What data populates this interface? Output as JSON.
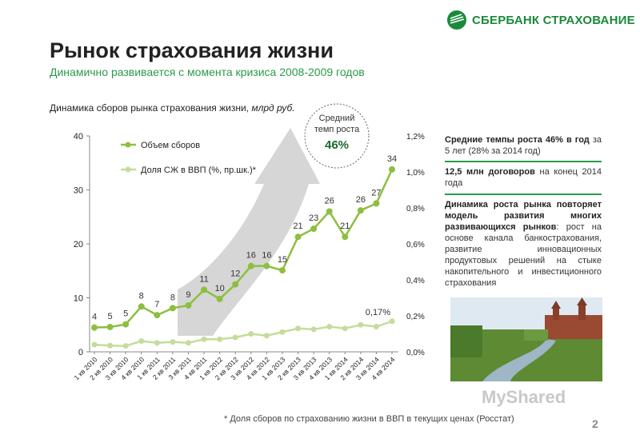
{
  "header": {
    "logo_text": "СБЕРБАНК СТРАХОВАНИЕ",
    "title": "Рынок страхования жизни",
    "subtitle": "Динамично развивается с момента кризиса 2008-2009 годов",
    "chart_caption": "Динамика сборов рынка страхования жизни,",
    "chart_caption_unit": "млрд руб."
  },
  "callout": {
    "line1": "Средний",
    "line2": "темп роста",
    "value": "46%"
  },
  "side": {
    "block1_bold": "Средние темпы роста 46% в год",
    "block1_rest": "за 5 лет (28% за 2014 год)",
    "block2_bold": "12,5 млн договоров",
    "block2_rest": "на конец 2014 года",
    "block3_bold": "Динамика роста рынка повторяет модель развития многих развивающихся рынков",
    "block3_rest": ": рост на основе канала банкострахования, развитие инновационных продуктовых решений на стыке накопительного и инвестиционного страхования"
  },
  "footnote": "* Доля сборов по страхованию жизни в ВВП в текущих ценах (Росстат)",
  "page_number": "2",
  "watermark": "MyShared",
  "colors": {
    "accent": "#2a9a4a",
    "series1": "#8cbf3f",
    "series2": "#c3dd9c",
    "arrow": "#bdbdbd"
  },
  "chart_data": {
    "type": "line",
    "categories": [
      "1 кв 2010",
      "2 кв 2010",
      "3 кв 2010",
      "4 кв 2010",
      "1 кв 2011",
      "2 кв 2011",
      "3 кв 2011",
      "4 кв 2011",
      "1 кв 2012",
      "2 кв 2012",
      "3 кв 2012",
      "4 кв 2012",
      "1 кв 2013",
      "2 кв 2013",
      "3 кв 2013",
      "4 кв 2013",
      "1 кв 2014",
      "2 кв 2014",
      "3 кв 2014",
      "4 кв 2014"
    ],
    "series": [
      {
        "name": "Объем сборов",
        "axis": "left",
        "values": [
          4.5,
          4.6,
          5.1,
          8.4,
          6.8,
          8.1,
          8.6,
          11.5,
          9.8,
          12.5,
          15.9,
          15.9,
          15.1,
          21.3,
          22.8,
          26.0,
          21.3,
          26.2,
          27.5,
          33.8
        ],
        "labels": [
          "4",
          "5",
          "5",
          "8",
          "7",
          "8",
          "9",
          "11",
          "10",
          "12",
          "16",
          "16",
          "15",
          "21",
          "23",
          "26",
          "21",
          "26",
          "27",
          "34"
        ]
      },
      {
        "name": "Доля СЖ в ВВП (%, пр.шк.)*",
        "axis": "right",
        "values": [
          0.04,
          0.035,
          0.033,
          0.06,
          0.05,
          0.055,
          0.05,
          0.07,
          0.07,
          0.08,
          0.1,
          0.09,
          0.11,
          0.13,
          0.125,
          0.14,
          0.13,
          0.15,
          0.14,
          0.17
        ],
        "last_label": "0,17%"
      }
    ],
    "y_left": {
      "ylim": [
        0,
        40
      ],
      "ticks": [
        "0",
        "10",
        "20",
        "30",
        "40"
      ]
    },
    "y_right": {
      "ylim": [
        0,
        1.2
      ],
      "ticks": [
        "0,0%",
        "0,2%",
        "0,4%",
        "0,6%",
        "0,8%",
        "1,0%",
        "1,2%"
      ]
    },
    "legend_position": "top-left",
    "grid": false
  }
}
